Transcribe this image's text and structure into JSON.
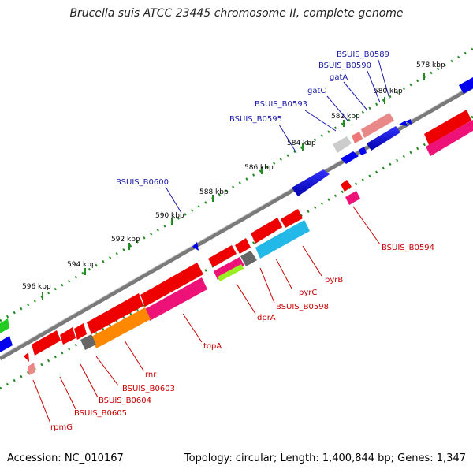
{
  "title": "Brucella suis ATCC 23445 chromosome II, complete genome",
  "footer": {
    "accession": "Accession: NC_010167",
    "summary": "Topology: circular; Length: 1,400,844 bp; Genes: 1,347"
  },
  "colors": {
    "backbone": "#808080",
    "tick": "#228B22",
    "label_forward": "#1a1aaa",
    "label_reverse": "#cc0000",
    "gene_blue": "#0000ee",
    "gene_red": "#ee0000",
    "gene_pink": "#ee1177",
    "gene_orange": "#ff8800",
    "gene_cyan": "#22b8e8",
    "gene_gray": "#666666",
    "gene_lightgreen": "#99ee22",
    "gene_green": "#22cc22"
  },
  "kbp_labels": [
    "578 kbp",
    "580 kbp",
    "582 kbp",
    "584 kbp",
    "586 kbp",
    "588 kbp",
    "590 kbp",
    "592 kbp",
    "594 kbp",
    "596 kbp"
  ],
  "forward_labels": [
    "BSUIS_B0589",
    "BSUIS_B0590",
    "gatA",
    "gatC",
    "BSUIS_B0593",
    "BSUIS_B0595",
    "BSUIS_B0600"
  ],
  "reverse_labels": [
    "BSUIS_B0594",
    "pyrB",
    "pyrC",
    "BSUIS_B0598",
    "dprA",
    "topA",
    "rnr",
    "BSUIS_B0603",
    "BSUIS_B0604",
    "BSUIS_B0605",
    "rpmG"
  ]
}
